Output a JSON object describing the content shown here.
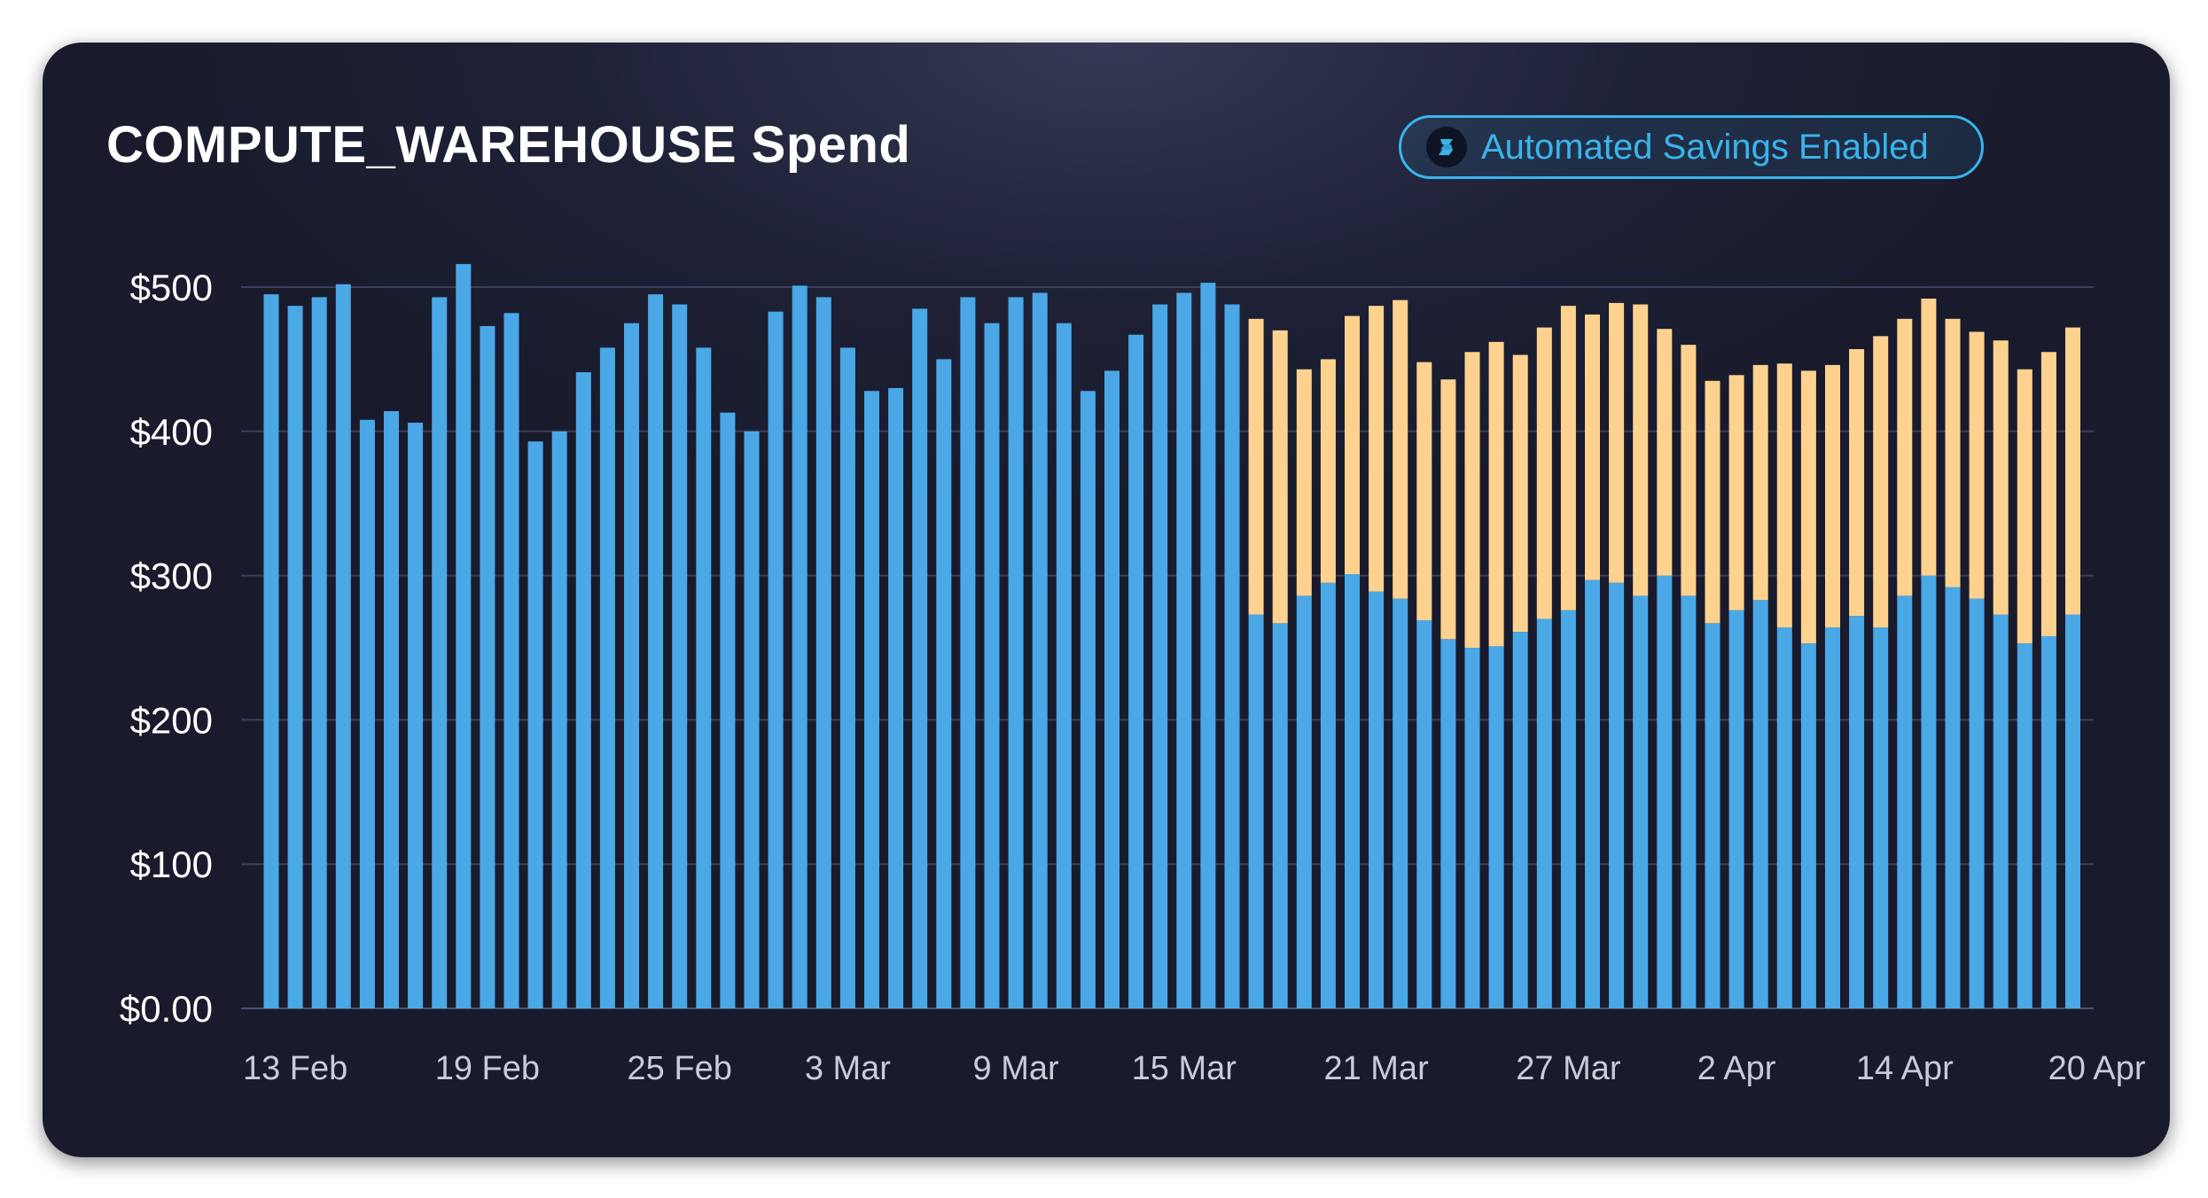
{
  "card": {
    "title": "COMPUTE_WAREHOUSE Spend",
    "badge": {
      "label": "Automated Savings Enabled",
      "icon": "snowflake-logo-icon",
      "color": "#3ab4ec"
    }
  },
  "colors": {
    "primary": "#4aa8e6",
    "savings": "#fdd28f",
    "grid": "#3a3f5c",
    "background": "#1e2136"
  },
  "chart_data": {
    "type": "bar",
    "stacked": true,
    "title": "COMPUTE_WAREHOUSE Spend",
    "ylim": [
      0,
      500
    ],
    "yticks": [
      "$0.00",
      "$100",
      "$200",
      "$300",
      "$400",
      "$500"
    ],
    "ytick_values": [
      0,
      100,
      200,
      300,
      400,
      500
    ],
    "xtick_labels": [
      "13 Feb",
      "19 Feb",
      "25 Feb",
      "3 Mar",
      "9 Mar",
      "15 Mar",
      "21 Mar",
      "27 Mar",
      "2 Apr",
      "14 Apr",
      "20 Apr"
    ],
    "xtick_bar_index": [
      1,
      9,
      17,
      24,
      31,
      38,
      46,
      54,
      61,
      68,
      76
    ],
    "grid": true,
    "legend": "none",
    "series": [
      {
        "color": "#4aa8e6",
        "values": [
          495,
          487,
          493,
          502,
          408,
          414,
          406,
          493,
          516,
          473,
          482,
          393,
          400,
          441,
          458,
          475,
          495,
          488,
          458,
          413,
          400,
          483,
          501,
          493,
          458,
          428,
          430,
          485,
          450,
          493,
          475,
          493,
          496,
          475,
          428,
          442,
          467,
          488,
          496,
          503,
          488,
          273,
          267,
          286,
          295,
          301,
          289,
          284,
          269,
          256,
          250,
          251,
          261,
          270,
          276,
          297,
          295,
          286,
          300,
          286,
          267,
          276,
          283,
          264,
          253,
          264,
          272,
          264,
          286,
          300,
          292,
          284,
          273,
          253,
          258,
          273
        ]
      },
      {
        "color": "#fdd28f",
        "values": [
          0,
          0,
          0,
          0,
          0,
          0,
          0,
          0,
          0,
          0,
          0,
          0,
          0,
          0,
          0,
          0,
          0,
          0,
          0,
          0,
          0,
          0,
          0,
          0,
          0,
          0,
          0,
          0,
          0,
          0,
          0,
          0,
          0,
          0,
          0,
          0,
          0,
          0,
          0,
          0,
          0,
          205,
          203,
          157,
          155,
          179,
          198,
          207,
          179,
          180,
          205,
          211,
          192,
          202,
          211,
          184,
          194,
          202,
          171,
          174,
          168,
          163,
          163,
          183,
          189,
          182,
          185,
          202,
          192,
          192,
          186,
          185,
          190,
          190,
          197,
          199
        ]
      }
    ]
  }
}
